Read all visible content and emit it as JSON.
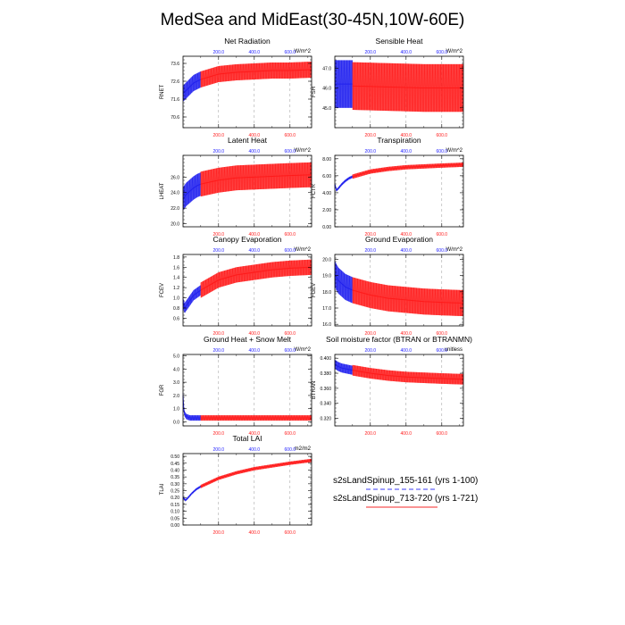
{
  "page": {
    "title": "MedSea and MidEast(30-45N,10W-60E)"
  },
  "legend": {
    "run1": "s2sLandSpinup_155-161 (yrs 1-100)",
    "run2": "s2sLandSpinup_713-720 (yrs 1-721)",
    "run1_color": "#3b3bf5",
    "run2_color": "#f52a2a"
  },
  "colors": {
    "blue": "#2020ee",
    "red": "#ff1a1a",
    "axis": "#000000",
    "grid": "#999999"
  },
  "chart_data": [
    {
      "type": "line",
      "id": "rnet",
      "title": "Net Radiation",
      "ylabel": "RNET",
      "units": "W/m^2",
      "xlim": [
        1,
        721
      ],
      "ylim": [
        70.0,
        74.0
      ],
      "yticks": [
        "70.6",
        "71.6",
        "72.6",
        "73.6"
      ],
      "x_top_ticks_run1": [
        "200.0",
        "400.0",
        "600.0"
      ],
      "x_bottom_ticks_run2": [
        "200.0",
        "400.0",
        "600.0"
      ],
      "x_grid": [
        200,
        400,
        600
      ],
      "series": [
        {
          "name": "s2sLandSpinup_155-161",
          "color": "blue",
          "x": [
            1,
            20,
            40,
            60,
            80,
            100
          ],
          "mean": [
            71.9,
            72.1,
            72.3,
            72.5,
            72.6,
            72.7
          ],
          "amplitude": 0.45
        },
        {
          "name": "s2sLandSpinup_713-720",
          "color": "red",
          "x": [
            100,
            200,
            300,
            400,
            500,
            600,
            721
          ],
          "mean": [
            72.7,
            73.0,
            73.1,
            73.15,
            73.2,
            73.2,
            73.25
          ],
          "amplitude": 0.45
        }
      ]
    },
    {
      "type": "line",
      "id": "fsh",
      "title": "Sensible Heat",
      "ylabel": "FSH",
      "units": "W/m^2",
      "xlim": [
        1,
        721
      ],
      "ylim": [
        44.0,
        47.6
      ],
      "yticks": [
        "45.0",
        "46.0",
        "47.0"
      ],
      "x_top_ticks_run1": [
        "200.0",
        "400.0",
        "600.0"
      ],
      "x_bottom_ticks_run2": [
        "200.0",
        "400.0",
        "600.0"
      ],
      "x_grid": [
        200,
        400,
        600
      ],
      "series": [
        {
          "name": "s2sLandSpinup_155-161",
          "color": "blue",
          "x": [
            1,
            50,
            100
          ],
          "mean": [
            46.2,
            46.2,
            46.2
          ],
          "amplitude": 1.2
        },
        {
          "name": "s2sLandSpinup_713-720",
          "color": "red",
          "x": [
            100,
            300,
            500,
            721
          ],
          "mean": [
            46.1,
            46.05,
            46.0,
            46.0
          ],
          "amplitude": 1.2
        }
      ]
    },
    {
      "type": "line",
      "id": "lheat",
      "title": "Latent Heat",
      "ylabel": "LHEAT",
      "units": "W/m^2",
      "xlim": [
        1,
        721
      ],
      "ylim": [
        19.6,
        28.8
      ],
      "yticks": [
        "20.0",
        "22.0",
        "24.0",
        "26.0"
      ],
      "x_top_ticks_run1": [
        "200.0",
        "400.0",
        "600.0"
      ],
      "x_bottom_ticks_run2": [
        "200.0",
        "400.0",
        "600.0"
      ],
      "x_grid": [
        200,
        400,
        600
      ],
      "series": [
        {
          "name": "s2sLandSpinup_155-161",
          "color": "blue",
          "x": [
            1,
            20,
            40,
            60,
            80,
            100
          ],
          "mean": [
            23.2,
            23.8,
            24.2,
            24.6,
            24.9,
            25.1
          ],
          "amplitude": 1.5
        },
        {
          "name": "s2sLandSpinup_713-720",
          "color": "red",
          "x": [
            100,
            200,
            300,
            400,
            500,
            600,
            721
          ],
          "mean": [
            25.1,
            25.6,
            25.9,
            26.0,
            26.1,
            26.2,
            26.3
          ],
          "amplitude": 1.6
        }
      ]
    },
    {
      "type": "line",
      "id": "fctr",
      "title": "Transpiration",
      "ylabel": "FCTR",
      "units": "W/m^2",
      "xlim": [
        1,
        721
      ],
      "ylim": [
        0.0,
        8.4
      ],
      "yticks": [
        "0.00",
        "2.00",
        "4.00",
        "6.00",
        "8.00"
      ],
      "x_top_ticks_run1": [
        "200.0",
        "400.0",
        "600.0"
      ],
      "x_bottom_ticks_run2": [
        "200.0",
        "400.0",
        "600.0"
      ],
      "x_grid": [
        200,
        400,
        600
      ],
      "series": [
        {
          "name": "s2sLandSpinup_155-161",
          "color": "blue",
          "x": [
            1,
            10,
            20,
            40,
            60,
            80,
            100
          ],
          "mean": [
            5.0,
            4.3,
            4.5,
            5.0,
            5.4,
            5.7,
            5.9
          ],
          "amplitude": 0.15
        },
        {
          "name": "s2sLandSpinup_713-720",
          "color": "red",
          "x": [
            100,
            200,
            300,
            400,
            500,
            600,
            721
          ],
          "mean": [
            5.9,
            6.5,
            6.8,
            7.0,
            7.1,
            7.2,
            7.3
          ],
          "amplitude": 0.25
        }
      ]
    },
    {
      "type": "line",
      "id": "fcev",
      "title": "Canopy Evaporation",
      "ylabel": "FCEV",
      "units": "W/m^2",
      "xlim": [
        1,
        721
      ],
      "ylim": [
        0.45,
        1.85
      ],
      "yticks": [
        "0.6",
        "0.8",
        "1.0",
        "1.2",
        "1.4",
        "1.6",
        "1.8"
      ],
      "x_top_ticks_run1": [
        "200.0",
        "400.0",
        "600.0"
      ],
      "x_bottom_ticks_run2": [
        "200.0",
        "400.0",
        "600.0"
      ],
      "x_grid": [
        200,
        400,
        600
      ],
      "series": [
        {
          "name": "s2sLandSpinup_155-161",
          "color": "blue",
          "x": [
            1,
            10,
            20,
            40,
            60,
            80,
            100
          ],
          "mean": [
            0.9,
            0.8,
            0.85,
            0.95,
            1.05,
            1.1,
            1.15
          ],
          "amplitude": 0.1
        },
        {
          "name": "s2sLandSpinup_713-720",
          "color": "red",
          "x": [
            100,
            200,
            300,
            400,
            500,
            600,
            721
          ],
          "mean": [
            1.15,
            1.35,
            1.45,
            1.5,
            1.55,
            1.58,
            1.6
          ],
          "amplitude": 0.15
        }
      ]
    },
    {
      "type": "line",
      "id": "fgev",
      "title": "Ground Evaporation",
      "ylabel": "FGEV",
      "units": "W/m^2",
      "xlim": [
        1,
        721
      ],
      "ylim": [
        15.9,
        20.3
      ],
      "yticks": [
        "16.0",
        "17.0",
        "18.0",
        "19.0",
        "20.0"
      ],
      "x_top_ticks_run1": [
        "200.0",
        "400.0",
        "600.0"
      ],
      "x_bottom_ticks_run2": [
        "200.0",
        "400.0",
        "600.0"
      ],
      "x_grid": [
        200,
        400,
        600
      ],
      "series": [
        {
          "name": "s2sLandSpinup_155-161",
          "color": "blue",
          "x": [
            1,
            20,
            40,
            60,
            80,
            100
          ],
          "mean": [
            19.1,
            18.7,
            18.5,
            18.3,
            18.2,
            18.1
          ],
          "amplitude": 0.8
        },
        {
          "name": "s2sLandSpinup_713-720",
          "color": "red",
          "x": [
            100,
            200,
            300,
            400,
            500,
            600,
            721
          ],
          "mean": [
            18.1,
            17.8,
            17.6,
            17.5,
            17.4,
            17.35,
            17.3
          ],
          "amplitude": 0.8
        }
      ]
    },
    {
      "type": "line",
      "id": "fgr",
      "title": "Ground Heat + Snow Melt",
      "ylabel": "FGR",
      "units": "W/m^2",
      "xlim": [
        1,
        721
      ],
      "ylim": [
        -0.3,
        5.1
      ],
      "yticks": [
        "0.0",
        "1.0",
        "2.0",
        "3.0",
        "4.0",
        "5.0"
      ],
      "x_top_ticks_run1": [
        "200.0",
        "400.0",
        "600.0"
      ],
      "x_bottom_ticks_run2": [
        "200.0",
        "400.0",
        "600.0"
      ],
      "x_grid": [
        200,
        400,
        600
      ],
      "series": [
        {
          "name": "s2sLandSpinup_155-161",
          "color": "blue",
          "x": [
            1,
            5,
            10,
            20,
            40,
            100
          ],
          "mean": [
            2.0,
            1.0,
            0.6,
            0.4,
            0.3,
            0.3
          ],
          "amplitude": 0.2
        },
        {
          "name": "s2sLandSpinup_713-720",
          "color": "red",
          "x": [
            100,
            400,
            721
          ],
          "mean": [
            0.3,
            0.3,
            0.3
          ],
          "amplitude": 0.2
        }
      ]
    },
    {
      "type": "line",
      "id": "btran",
      "title": "Soil moisture factor (BTRAN or BTRANMN)",
      "ylabel": "BTRAN",
      "units": "unitless",
      "xlim": [
        1,
        721
      ],
      "ylim": [
        0.31,
        0.405
      ],
      "yticks": [
        "0.320",
        "0.340",
        "0.360",
        "0.380",
        "0.400"
      ],
      "x_top_ticks_run1": [
        "200.0",
        "400.0",
        "600.0"
      ],
      "x_bottom_ticks_run2": [
        "200.0",
        "400.0",
        "600.0"
      ],
      "x_grid": [
        200,
        400,
        600
      ],
      "series": [
        {
          "name": "s2sLandSpinup_155-161",
          "color": "blue",
          "x": [
            1,
            20,
            40,
            60,
            80,
            100
          ],
          "mean": [
            0.392,
            0.389,
            0.387,
            0.386,
            0.385,
            0.384
          ],
          "amplitude": 0.006
        },
        {
          "name": "s2sLandSpinup_713-720",
          "color": "red",
          "x": [
            100,
            200,
            300,
            400,
            500,
            600,
            721
          ],
          "mean": [
            0.384,
            0.38,
            0.377,
            0.375,
            0.374,
            0.373,
            0.372
          ],
          "amplitude": 0.007
        }
      ]
    },
    {
      "type": "line",
      "id": "tlai",
      "title": "Total LAI",
      "ylabel": "TLAI",
      "units": "m2/m2",
      "xlim": [
        1,
        721
      ],
      "ylim": [
        0.0,
        0.52
      ],
      "yticks": [
        "0.00",
        "0.05",
        "0.10",
        "0.15",
        "0.20",
        "0.25",
        "0.30",
        "0.35",
        "0.40",
        "0.45",
        "0.50"
      ],
      "x_top_ticks_run1": [
        "200.0",
        "400.0",
        "600.0"
      ],
      "x_bottom_ticks_run2": [
        "200.0",
        "400.0",
        "600.0"
      ],
      "x_grid": [
        200,
        400,
        600
      ],
      "series": [
        {
          "name": "s2sLandSpinup_155-161",
          "color": "blue",
          "x": [
            1,
            15,
            30,
            50,
            75,
            100
          ],
          "mean": [
            0.2,
            0.18,
            0.2,
            0.23,
            0.26,
            0.28
          ],
          "amplitude": 0.008
        },
        {
          "name": "s2sLandSpinup_713-720",
          "color": "red",
          "x": [
            100,
            200,
            300,
            400,
            500,
            600,
            721
          ],
          "mean": [
            0.28,
            0.34,
            0.38,
            0.41,
            0.43,
            0.45,
            0.47
          ],
          "amplitude": 0.012
        }
      ]
    }
  ]
}
